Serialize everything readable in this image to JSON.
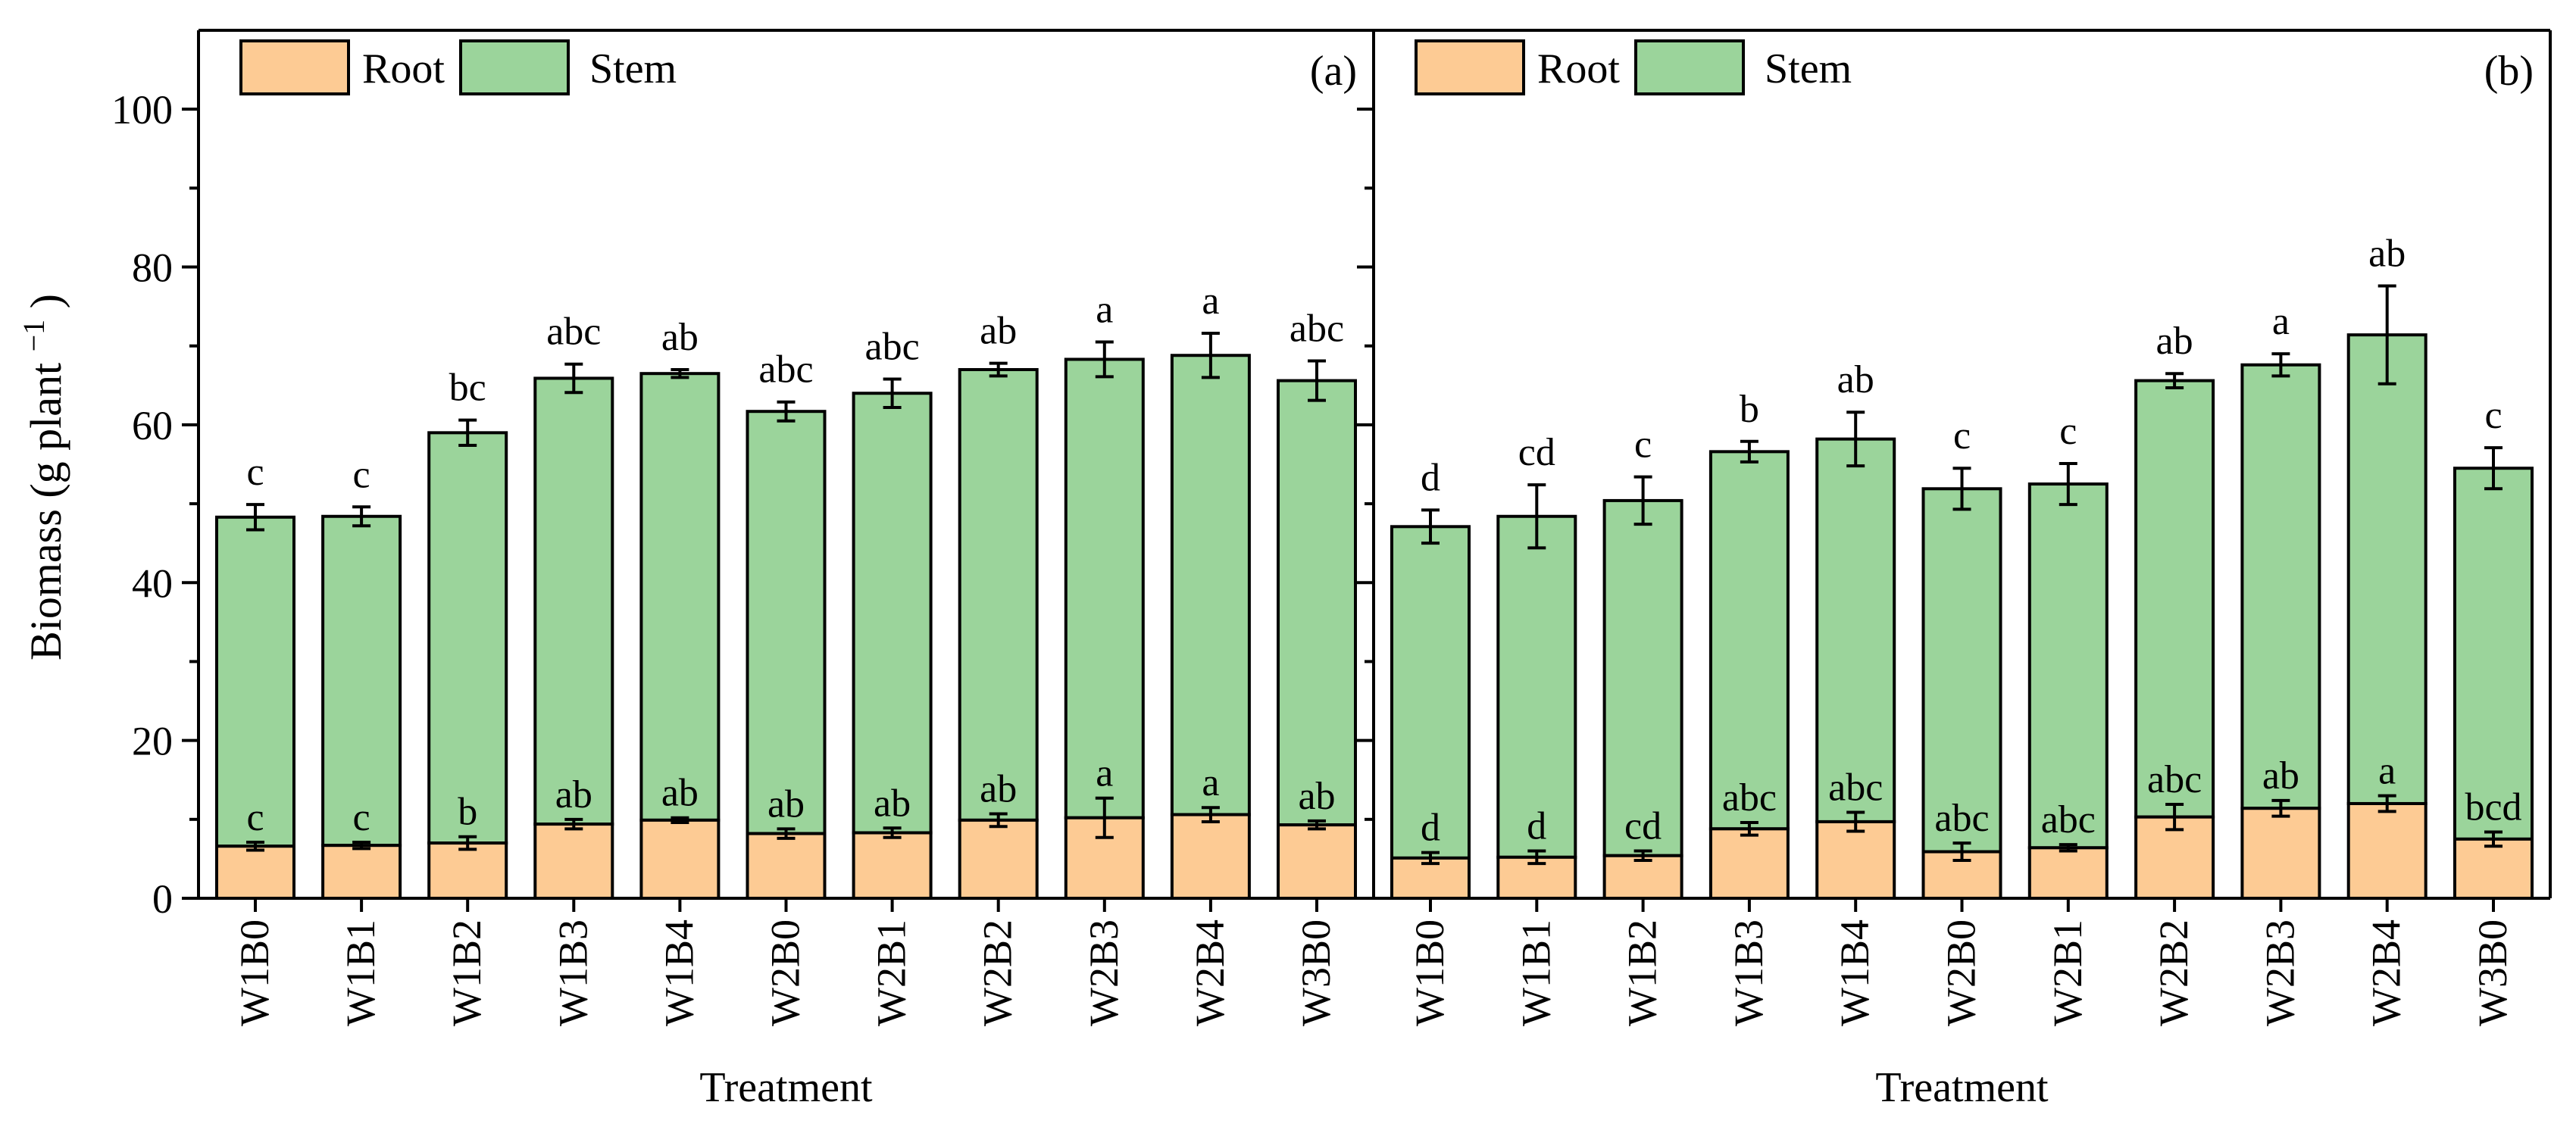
{
  "colors": {
    "root": "#FDCB94",
    "stem": "#9BD49B",
    "axis": "#000000",
    "background": "#FFFFFF"
  },
  "figure": {
    "y_axis_label": "Biomass (g plant",
    "y_axis_label_sup": "−1",
    "y_axis_label_close": ")",
    "x_axis_label": "Treatment"
  },
  "chart_data": [
    {
      "type": "bar",
      "stacked": true,
      "panel_label": "(a)",
      "legend": [
        "Root",
        "Stem"
      ],
      "legend_position": "top-left",
      "categories": [
        "W1B0",
        "W1B1",
        "W1B2",
        "W1B3",
        "W1B4",
        "W2B0",
        "W2B1",
        "W2B2",
        "W2B3",
        "W2B4",
        "W3B0"
      ],
      "series": [
        {
          "name": "Root",
          "values": [
            6.6,
            6.7,
            7.0,
            9.4,
            9.9,
            8.2,
            8.3,
            9.9,
            10.2,
            10.6,
            9.3
          ],
          "errors": [
            0.5,
            0.4,
            0.8,
            0.6,
            0.3,
            0.6,
            0.6,
            0.8,
            2.5,
            0.9,
            0.5
          ],
          "letters": [
            "c",
            "c",
            "b",
            "ab",
            "ab",
            "ab",
            "ab",
            "ab",
            "a",
            "a",
            "ab"
          ]
        },
        {
          "name": "Stem",
          "totals": [
            48.3,
            48.4,
            59.0,
            65.9,
            66.5,
            61.7,
            64.0,
            67.0,
            68.3,
            68.8,
            65.6
          ],
          "errors": [
            1.6,
            1.2,
            1.6,
            1.8,
            0.5,
            1.2,
            1.8,
            0.8,
            2.2,
            2.8,
            2.5
          ],
          "letters": [
            "c",
            "c",
            "bc",
            "abc",
            "ab",
            "abc",
            "abc",
            "ab",
            "a",
            "a",
            "abc"
          ]
        }
      ],
      "ylim": [
        0,
        110
      ],
      "yticks": [
        0,
        20,
        40,
        60,
        80,
        100
      ],
      "ylabel": "Biomass (g plant−1)",
      "xlabel": "Treatment"
    },
    {
      "type": "bar",
      "stacked": true,
      "panel_label": "(b)",
      "legend": [
        "Root",
        "Stem"
      ],
      "legend_position": "top-left",
      "categories": [
        "W1B0",
        "W1B1",
        "W1B2",
        "W1B3",
        "W1B4",
        "W2B0",
        "W2B1",
        "W2B2",
        "W2B3",
        "W2B4",
        "W3B0"
      ],
      "series": [
        {
          "name": "Root",
          "values": [
            5.1,
            5.2,
            5.4,
            8.8,
            9.7,
            5.9,
            6.4,
            10.3,
            11.4,
            12.0,
            7.5
          ],
          "errors": [
            0.7,
            0.8,
            0.6,
            0.8,
            1.2,
            1.1,
            0.4,
            1.6,
            1.0,
            1.0,
            0.9
          ],
          "letters": [
            "d",
            "d",
            "cd",
            "abc",
            "abc",
            "abc",
            "abc",
            "abc",
            "ab",
            "a",
            "bcd"
          ]
        },
        {
          "name": "Stem",
          "totals": [
            47.1,
            48.4,
            50.4,
            56.6,
            58.2,
            51.9,
            52.5,
            65.6,
            67.6,
            71.4,
            54.5
          ],
          "errors": [
            2.1,
            4.0,
            3.0,
            1.3,
            3.4,
            2.6,
            2.6,
            0.9,
            1.4,
            6.2,
            2.6
          ],
          "letters": [
            "d",
            "cd",
            "c",
            "b",
            "ab",
            "c",
            "c",
            "ab",
            "a",
            "ab",
            "c"
          ]
        }
      ],
      "ylim": [
        0,
        110
      ],
      "yticks": [
        0,
        20,
        40,
        60,
        80,
        100
      ],
      "xlabel": "Treatment"
    }
  ]
}
